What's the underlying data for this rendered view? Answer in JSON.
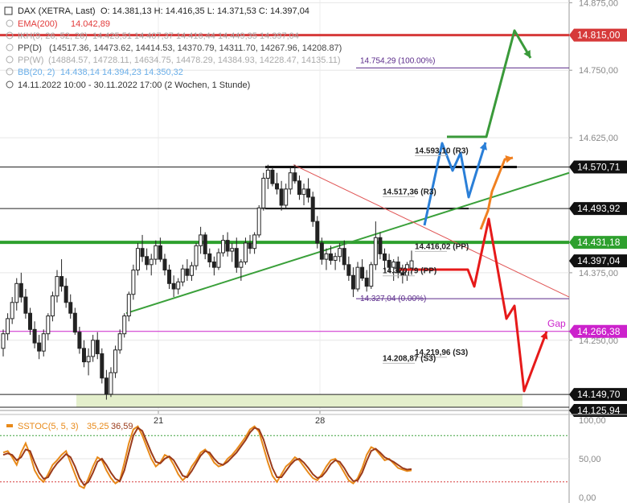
{
  "chart_data": {
    "type": "candlestick",
    "header": {
      "symbol": "DAX (XETRA, Last)",
      "ohlc": "O: 14.381,13   H: 14.416,35   L: 14.371,53   C: 14.397,04",
      "indicators": [
        {
          "name": "EMA(200)",
          "value": "14.042,89",
          "color": "#e23b3b"
        },
        {
          "name": "IKH(9, 26, 52, 26)",
          "value": "14.425,51   14.407,37   14.416,44   14.449,35   14.397,04",
          "color": "#aaaaaa"
        },
        {
          "name": "PP(D)",
          "value": "(14517.36, 14473.62, 14414.53, 14370.79, 14311.70, 14267.96, 14208.87)",
          "color": "#444444"
        },
        {
          "name": "PP(W)",
          "value": "(14884.57, 14728.11, 14634.75, 14478.29, 14384.93, 14228.47, 14135.11)",
          "color": "#aaaaaa"
        },
        {
          "name": "BB(20, 2)",
          "value": "14.438,14   14.394,23   14.350,32",
          "color": "#6aaee8"
        }
      ],
      "range": "14.11.2022 10:00 - 30.11.2022 17:00   (2 Wochen, 1 Stunde)"
    },
    "y_axis": {
      "min": 14120,
      "max": 14880,
      "ticks": [
        {
          "v": 14875,
          "label": "14.875,00"
        },
        {
          "v": 14750,
          "label": "14.750,00"
        },
        {
          "v": 14625,
          "label": "14.625,00"
        },
        {
          "v": 14375,
          "label": "14.375,00"
        },
        {
          "v": 14250,
          "label": "14.250,00"
        }
      ]
    },
    "x_axis": {
      "ticks": [
        {
          "x": 197,
          "label": "21"
        },
        {
          "x": 398,
          "label": "28"
        }
      ]
    },
    "price_tags": [
      {
        "v": 14815.0,
        "label": "14.815,00",
        "bg": "#d63a3a"
      },
      {
        "v": 14570.71,
        "label": "14.570,71",
        "bg": "#111111"
      },
      {
        "v": 14493.92,
        "label": "14.493,92",
        "bg": "#111111"
      },
      {
        "v": 14431.18,
        "label": "14.431,18",
        "bg": "#2ea02e"
      },
      {
        "v": 14397.04,
        "label": "14.397,04",
        "bg": "#111111"
      },
      {
        "v": 14266.38,
        "label": "14.266,38",
        "bg": "#cc22cc"
      },
      {
        "v": 14149.7,
        "label": "14.149,70",
        "bg": "#111111"
      },
      {
        "v": 14125.94,
        "label": "14.125,94",
        "bg": "#111111"
      }
    ],
    "levels": [
      {
        "v": 14815.0,
        "color": "#d63a3a",
        "width": 3
      },
      {
        "v": 14570.71,
        "color": "#222222",
        "width": 1
      },
      {
        "v": 14493.92,
        "color": "#222222",
        "width": 1
      },
      {
        "v": 14431.18,
        "color": "#2ea02e",
        "width": 4
      },
      {
        "v": 14266.38,
        "color": "#cc22cc",
        "width": 1
      },
      {
        "v": 14149.7,
        "color": "#222222",
        "width": 1
      },
      {
        "v": 14125.94,
        "color": "#222222",
        "width": 1
      }
    ],
    "annotations": {
      "gap": "Gap",
      "fib_high": "14.754,29 (100.00%)",
      "fib_low": "14.327,04 (0.00%)",
      "pp_labels": [
        {
          "text": "14.593,10 (R3)",
          "v": 14593.1
        },
        {
          "text": "14.517,36 (R3)",
          "v": 14517.36
        },
        {
          "text": "14.416,02 (PP)",
          "v": 14416.02
        },
        {
          "text": "14.370,79 (PP)",
          "v": 14370.79
        },
        {
          "text": "14.219,96 (S3)",
          "v": 14219.96
        },
        {
          "text": "14.208,87 (S3)",
          "v": 14208.87
        }
      ]
    },
    "candles": [
      [
        14235,
        14270,
        14220,
        14262
      ],
      [
        14262,
        14300,
        14250,
        14290
      ],
      [
        14290,
        14330,
        14280,
        14320
      ],
      [
        14320,
        14365,
        14305,
        14355
      ],
      [
        14355,
        14375,
        14320,
        14330
      ],
      [
        14330,
        14345,
        14290,
        14300
      ],
      [
        14300,
        14310,
        14260,
        14270
      ],
      [
        14270,
        14285,
        14235,
        14245
      ],
      [
        14245,
        14260,
        14215,
        14230
      ],
      [
        14230,
        14270,
        14220,
        14262
      ],
      [
        14262,
        14300,
        14250,
        14295
      ],
      [
        14295,
        14340,
        14285,
        14332
      ],
      [
        14332,
        14380,
        14320,
        14368
      ],
      [
        14368,
        14400,
        14340,
        14350
      ],
      [
        14350,
        14365,
        14310,
        14320
      ],
      [
        14320,
        14335,
        14290,
        14300
      ],
      [
        14300,
        14310,
        14260,
        14265
      ],
      [
        14265,
        14275,
        14225,
        14235
      ],
      [
        14235,
        14250,
        14200,
        14210
      ],
      [
        14210,
        14235,
        14185,
        14220
      ],
      [
        14220,
        14260,
        14210,
        14250
      ],
      [
        14250,
        14265,
        14215,
        14225
      ],
      [
        14225,
        14235,
        14170,
        14180
      ],
      [
        14180,
        14195,
        14140,
        14150
      ],
      [
        14150,
        14200,
        14145,
        14190
      ],
      [
        14190,
        14240,
        14180,
        14232
      ],
      [
        14232,
        14270,
        14225,
        14262
      ],
      [
        14262,
        14300,
        14255,
        14295
      ],
      [
        14295,
        14340,
        14285,
        14335
      ],
      [
        14335,
        14390,
        14325,
        14380
      ],
      [
        14380,
        14430,
        14370,
        14420
      ],
      [
        14420,
        14445,
        14395,
        14405
      ],
      [
        14405,
        14420,
        14380,
        14390
      ],
      [
        14390,
        14410,
        14370,
        14400
      ],
      [
        14400,
        14435,
        14390,
        14425
      ],
      [
        14425,
        14440,
        14395,
        14400
      ],
      [
        14400,
        14410,
        14370,
        14380
      ],
      [
        14380,
        14390,
        14345,
        14355
      ],
      [
        14355,
        14370,
        14330,
        14345
      ],
      [
        14345,
        14365,
        14335,
        14358
      ],
      [
        14358,
        14390,
        14350,
        14382
      ],
      [
        14382,
        14400,
        14360,
        14370
      ],
      [
        14370,
        14395,
        14360,
        14388
      ],
      [
        14388,
        14430,
        14380,
        14425
      ],
      [
        14425,
        14460,
        14410,
        14445
      ],
      [
        14445,
        14450,
        14400,
        14410
      ],
      [
        14410,
        14420,
        14385,
        14395
      ],
      [
        14395,
        14405,
        14370,
        14385
      ],
      [
        14385,
        14420,
        14380,
        14412
      ],
      [
        14412,
        14445,
        14405,
        14435
      ],
      [
        14435,
        14450,
        14405,
        14415
      ],
      [
        14415,
        14430,
        14395,
        14420
      ],
      [
        14420,
        14440,
        14375,
        14385
      ],
      [
        14385,
        14400,
        14360,
        14395
      ],
      [
        14395,
        14440,
        14390,
        14430
      ],
      [
        14430,
        14445,
        14410,
        14420
      ],
      [
        14420,
        14450,
        14410,
        14445
      ],
      [
        14445,
        14500,
        14440,
        14495
      ],
      [
        14495,
        14560,
        14490,
        14550
      ],
      [
        14550,
        14575,
        14530,
        14565
      ],
      [
        14565,
        14570,
        14535,
        14540
      ],
      [
        14540,
        14560,
        14520,
        14530
      ],
      [
        14530,
        14545,
        14490,
        14500
      ],
      [
        14500,
        14540,
        14495,
        14530
      ],
      [
        14530,
        14570,
        14520,
        14560
      ],
      [
        14560,
        14575,
        14540,
        14545
      ],
      [
        14545,
        14555,
        14510,
        14520
      ],
      [
        14520,
        14540,
        14500,
        14530
      ],
      [
        14530,
        14550,
        14505,
        14515
      ],
      [
        14515,
        14525,
        14460,
        14470
      ],
      [
        14470,
        14480,
        14420,
        14430
      ],
      [
        14430,
        14440,
        14390,
        14400
      ],
      [
        14400,
        14420,
        14380,
        14410
      ],
      [
        14410,
        14425,
        14390,
        14398
      ],
      [
        14398,
        14412,
        14380,
        14405
      ],
      [
        14405,
        14430,
        14395,
        14420
      ],
      [
        14420,
        14435,
        14380,
        14390
      ],
      [
        14390,
        14405,
        14360,
        14370
      ],
      [
        14370,
        14385,
        14330,
        14345
      ],
      [
        14345,
        14395,
        14340,
        14385
      ],
      [
        14385,
        14400,
        14360,
        14365
      ],
      [
        14365,
        14380,
        14340,
        14350
      ],
      [
        14350,
        14395,
        14345,
        14390
      ],
      [
        14390,
        14470,
        14380,
        14440
      ],
      [
        14440,
        14450,
        14400,
        14410
      ],
      [
        14410,
        14420,
        14380,
        14398
      ],
      [
        14398,
        14410,
        14375,
        14385
      ],
      [
        14385,
        14400,
        14360,
        14395
      ],
      [
        14395,
        14405,
        14365,
        14375
      ],
      [
        14375,
        14390,
        14355,
        14370
      ],
      [
        14370,
        14395,
        14360,
        14390
      ],
      [
        14381,
        14416,
        14371,
        14397
      ]
    ],
    "stoch": {
      "label": "SSTOC(5, 5, 3)",
      "k_value": "35,25",
      "d_value": "36,59",
      "k_color": "#e88a1a",
      "d_color": "#9a3a1a",
      "y_ticks": [
        {
          "v": 100,
          "label": "100,00"
        },
        {
          "v": 50,
          "label": "50,00"
        },
        {
          "v": 0,
          "label": "0,00"
        }
      ],
      "k": [
        58,
        60,
        52,
        42,
        58,
        70,
        55,
        35,
        25,
        20,
        30,
        42,
        48,
        55,
        60,
        45,
        30,
        15,
        12,
        25,
        40,
        52,
        48,
        35,
        25,
        18,
        22,
        45,
        70,
        88,
        92,
        80,
        65,
        50,
        40,
        45,
        55,
        52,
        42,
        30,
        22,
        28,
        40,
        48,
        58,
        62,
        55,
        45,
        40,
        42,
        50,
        55,
        62,
        70,
        78,
        88,
        92,
        85,
        65,
        45,
        28,
        20,
        30,
        40,
        45,
        52,
        48,
        40,
        32,
        25,
        22,
        30,
        40,
        48,
        50,
        42,
        32,
        22,
        18,
        25,
        38,
        55,
        65,
        62,
        55,
        48,
        50,
        44,
        38,
        36,
        34,
        35
      ],
      "d": [
        55,
        57,
        55,
        48,
        52,
        62,
        60,
        45,
        32,
        24,
        26,
        36,
        44,
        50,
        56,
        52,
        40,
        25,
        16,
        20,
        32,
        46,
        50,
        42,
        32,
        24,
        21,
        35,
        58,
        80,
        90,
        86,
        72,
        58,
        46,
        44,
        50,
        53,
        48,
        38,
        28,
        26,
        34,
        44,
        54,
        60,
        58,
        50,
        44,
        42,
        46,
        52,
        58,
        66,
        74,
        84,
        90,
        88,
        75,
        56,
        38,
        26,
        26,
        34,
        42,
        48,
        50,
        45,
        38,
        30,
        25,
        27,
        34,
        43,
        48,
        46,
        38,
        28,
        21,
        22,
        32,
        47,
        60,
        63,
        58,
        52,
        49,
        46,
        42,
        38,
        36,
        36.59
      ]
    }
  }
}
